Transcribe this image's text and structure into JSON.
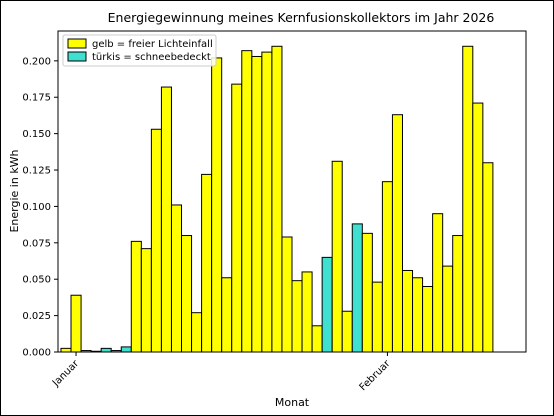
{
  "chart_data": {
    "type": "bar",
    "title": "Energiegewinnung meines Kernfusionskollektors im Jahr 2026",
    "xlabel": "Monat",
    "ylabel": "Energie in kWh",
    "ylim": [
      0,
      0.2205
    ],
    "yticks": [
      0.0,
      0.025,
      0.05,
      0.075,
      0.1,
      0.125,
      0.15,
      0.175,
      0.2
    ],
    "ytick_labels": [
      "0.000",
      "0.025",
      "0.050",
      "0.075",
      "0.100",
      "0.125",
      "0.150",
      "0.175",
      "0.200"
    ],
    "xtick_labels": [
      {
        "label": "Januar",
        "date": "2026-01-01"
      },
      {
        "label": "Februar",
        "date": "2026-02-01"
      }
    ],
    "start_date": "2025-12-31",
    "end_date": "2026-02-14",
    "colors": {
      "sunny": "#ffff00",
      "snow": "#40e0d0",
      "edge": "#000000"
    },
    "legend": {
      "placement": "upper-left",
      "entries": [
        {
          "label": "gelb = freier Lichteinfall",
          "color": "#ffff00"
        },
        {
          "label": "türkis = schneebedeckt",
          "color": "#40e0d0"
        }
      ]
    },
    "series": [
      {
        "date": "2025-12-31",
        "value": 0.0025,
        "snow": false
      },
      {
        "date": "2026-01-01",
        "value": 0.039,
        "snow": false
      },
      {
        "date": "2026-01-02",
        "value": 0.001,
        "snow": true
      },
      {
        "date": "2026-01-03",
        "value": 0.0005,
        "snow": true
      },
      {
        "date": "2026-01-04",
        "value": 0.0025,
        "snow": true
      },
      {
        "date": "2026-01-05",
        "value": 0.001,
        "snow": true
      },
      {
        "date": "2026-01-06",
        "value": 0.0035,
        "snow": true
      },
      {
        "date": "2026-01-07",
        "value": 0.076,
        "snow": false
      },
      {
        "date": "2026-01-08",
        "value": 0.071,
        "snow": false
      },
      {
        "date": "2026-01-09",
        "value": 0.153,
        "snow": false
      },
      {
        "date": "2026-01-10",
        "value": 0.182,
        "snow": false
      },
      {
        "date": "2026-01-11",
        "value": 0.101,
        "snow": false
      },
      {
        "date": "2026-01-12",
        "value": 0.08,
        "snow": false
      },
      {
        "date": "2026-01-13",
        "value": 0.027,
        "snow": false
      },
      {
        "date": "2026-01-14",
        "value": 0.122,
        "snow": false
      },
      {
        "date": "2026-01-15",
        "value": 0.202,
        "snow": false
      },
      {
        "date": "2026-01-16",
        "value": 0.051,
        "snow": false
      },
      {
        "date": "2026-01-17",
        "value": 0.184,
        "snow": false
      },
      {
        "date": "2026-01-18",
        "value": 0.207,
        "snow": false
      },
      {
        "date": "2026-01-19",
        "value": 0.203,
        "snow": false
      },
      {
        "date": "2026-01-20",
        "value": 0.206,
        "snow": false
      },
      {
        "date": "2026-01-21",
        "value": 0.21,
        "snow": false
      },
      {
        "date": "2026-01-22",
        "value": 0.079,
        "snow": false
      },
      {
        "date": "2026-01-23",
        "value": 0.049,
        "snow": false
      },
      {
        "date": "2026-01-24",
        "value": 0.055,
        "snow": false
      },
      {
        "date": "2026-01-25",
        "value": 0.018,
        "snow": false
      },
      {
        "date": "2026-01-26",
        "value": 0.065,
        "snow": true
      },
      {
        "date": "2026-01-27",
        "value": 0.131,
        "snow": false
      },
      {
        "date": "2026-01-28",
        "value": 0.028,
        "snow": false
      },
      {
        "date": "2026-01-29",
        "value": 0.088,
        "snow": true
      },
      {
        "date": "2026-01-30",
        "value": 0.0815,
        "snow": false
      },
      {
        "date": "2026-01-31",
        "value": 0.048,
        "snow": false
      },
      {
        "date": "2026-02-01",
        "value": 0.117,
        "snow": false
      },
      {
        "date": "2026-02-02",
        "value": 0.163,
        "snow": false
      },
      {
        "date": "2026-02-03",
        "value": 0.056,
        "snow": false
      },
      {
        "date": "2026-02-04",
        "value": 0.051,
        "snow": false
      },
      {
        "date": "2026-02-05",
        "value": 0.045,
        "snow": false
      },
      {
        "date": "2026-02-06",
        "value": 0.095,
        "snow": false
      },
      {
        "date": "2026-02-07",
        "value": 0.059,
        "snow": false
      },
      {
        "date": "2026-02-08",
        "value": 0.08,
        "snow": false
      },
      {
        "date": "2026-02-09",
        "value": 0.21,
        "snow": false
      },
      {
        "date": "2026-02-10",
        "value": 0.171,
        "snow": false
      },
      {
        "date": "2026-02-11",
        "value": 0.13,
        "snow": false
      }
    ]
  }
}
